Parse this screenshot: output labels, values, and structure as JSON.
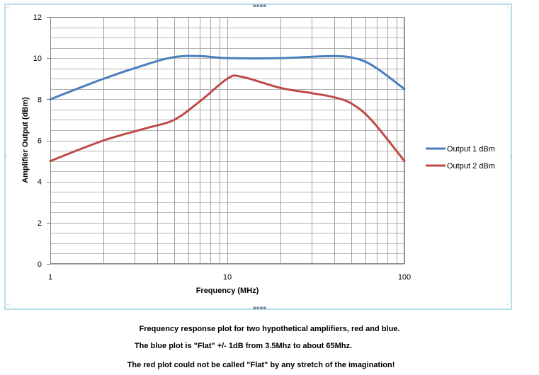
{
  "chart_data": {
    "type": "line",
    "x_scale": "log",
    "xlim": [
      1,
      100
    ],
    "ylim": [
      0,
      12
    ],
    "xlabel": "Frequency (MHz)",
    "ylabel": "Amplifier Output (dBm)",
    "x_ticks": [
      "1",
      "10",
      "100"
    ],
    "y_ticks": [
      "0",
      "2",
      "4",
      "6",
      "8",
      "10",
      "12"
    ],
    "grid": true,
    "legend": "right",
    "series": [
      {
        "name": "Output 1 dBm",
        "color": "#4a7ebb",
        "x": [
          1,
          2,
          3.5,
          5,
          7,
          10,
          20,
          40,
          55,
          70,
          100
        ],
        "y": [
          8.0,
          9.0,
          9.7,
          10.05,
          10.1,
          10.0,
          10.0,
          10.1,
          9.95,
          9.5,
          8.5
        ]
      },
      {
        "name": "Output 2 dBm",
        "color": "#be4b48",
        "x": [
          1,
          2,
          3.5,
          5,
          7,
          10,
          12,
          20,
          30,
          40,
          50,
          65,
          100
        ],
        "y": [
          5.0,
          6.0,
          6.6,
          7.0,
          7.9,
          9.0,
          9.1,
          8.55,
          8.3,
          8.1,
          7.8,
          7.0,
          5.0
        ]
      }
    ]
  },
  "captions": {
    "line1": "Frequency response plot for two hypothetical amplifiers, red and blue.",
    "line2": "The blue plot is \"Flat\"  +/- 1dB from 3.5Mhz to about 65Mhz.",
    "line3": "The red plot could not be called \"Flat\" by any stretch of the imagination!"
  }
}
